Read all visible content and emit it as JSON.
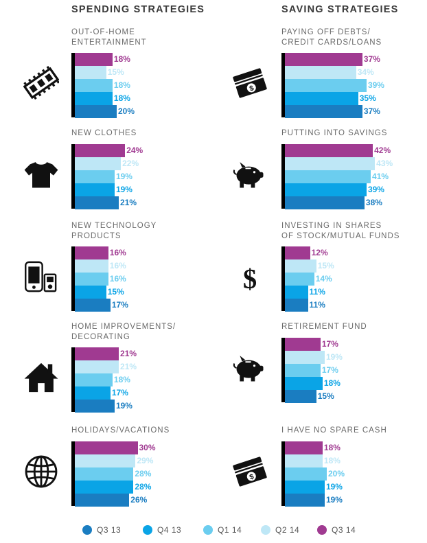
{
  "headers": {
    "spending": "SPENDING STRATEGIES",
    "saving": "SAVING STRATEGIES"
  },
  "colors": {
    "Q3 14": "#a03a91",
    "Q2 14": "#bee7f6",
    "Q1 14": "#6bcdef",
    "Q4 13": "#0aa4e6",
    "Q3 13": "#1a7dc1",
    "icon": "#111111"
  },
  "chart_data": {
    "type": "bar",
    "orientation": "horizontal",
    "series_order": [
      "Q3 14",
      "Q2 14",
      "Q1 14",
      "Q4 13",
      "Q3 13"
    ],
    "legend": [
      "Q3 13",
      "Q4 13",
      "Q1 14",
      "Q2 14",
      "Q3 14"
    ],
    "unit": "%",
    "xlim": [
      0,
      45
    ],
    "spending": [
      {
        "label_lines": [
          "OUT-OF-HOME",
          "ENTERTAINMENT"
        ],
        "icon": "film-strip-icon",
        "values": [
          18,
          15,
          18,
          18,
          20
        ]
      },
      {
        "label_lines": [
          "NEW CLOTHES"
        ],
        "icon": "tshirt-icon",
        "values": [
          24,
          22,
          19,
          19,
          21
        ]
      },
      {
        "label_lines": [
          "NEW TECHNOLOGY",
          "PRODUCTS"
        ],
        "icon": "devices-icon",
        "values": [
          16,
          16,
          16,
          15,
          17
        ]
      },
      {
        "label_lines": [
          "HOME IMPROVEMENTS/",
          "DECORATING"
        ],
        "icon": "house-icon",
        "values": [
          21,
          21,
          18,
          17,
          19
        ]
      },
      {
        "label_lines": [
          "HOLIDAYS/VACATIONS"
        ],
        "icon": "globe-icon",
        "values": [
          30,
          29,
          28,
          28,
          26
        ]
      }
    ],
    "saving": [
      {
        "label_lines": [
          "PAYING OFF DEBTS/",
          "CREDIT CARDS/LOANS"
        ],
        "icon": "money-stack-icon",
        "values": [
          37,
          34,
          39,
          35,
          37
        ]
      },
      {
        "label_lines": [
          "PUTTING INTO SAVINGS"
        ],
        "icon": "piggy-bank-icon",
        "values": [
          42,
          43,
          41,
          39,
          38
        ]
      },
      {
        "label_lines": [
          "INVESTING IN SHARES",
          "OF STOCK/MUTUAL FUNDS"
        ],
        "icon": "dollar-sign-icon",
        "values": [
          12,
          15,
          14,
          11,
          11
        ]
      },
      {
        "label_lines": [
          "RETIREMENT FUND"
        ],
        "icon": "piggy-bank-icon",
        "values": [
          17,
          19,
          17,
          18,
          15
        ]
      },
      {
        "label_lines": [
          "I HAVE NO SPARE CASH"
        ],
        "icon": "money-stack-icon",
        "values": [
          18,
          18,
          20,
          19,
          19
        ]
      }
    ]
  }
}
